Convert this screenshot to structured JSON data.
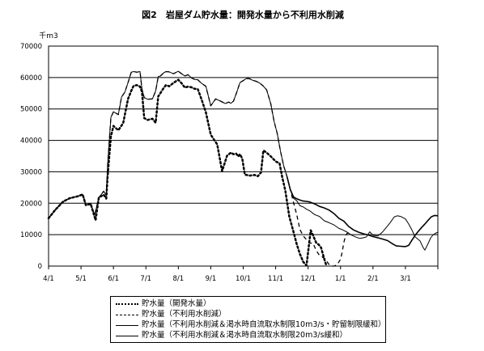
{
  "chart_data": {
    "type": "line",
    "title": "図2　岩屋ダム貯水量：開発水量から不利用水削減",
    "unit_label": "千m3",
    "ylim": [
      0,
      70000
    ],
    "y_ticks": [
      "0",
      "10000",
      "20000",
      "30000",
      "40000",
      "50000",
      "60000",
      "70000"
    ],
    "x_ticks": [
      "4/1",
      "5/1",
      "6/1",
      "7/1",
      "8/1",
      "9/1",
      "10/1",
      "11/1",
      "12/1",
      "1/1",
      "2/1",
      "3/1"
    ],
    "x_units": "months from 4/1",
    "xlim": [
      0,
      12
    ],
    "grid": "horizontal",
    "legend_position": "bottom",
    "series": [
      {
        "name": "貯水量（開発水量）",
        "style": "dotted",
        "x": [
          0,
          0.2,
          0.45,
          0.65,
          0.9,
          1.05,
          1.15,
          1.3,
          1.45,
          1.55,
          1.7,
          1.78,
          1.82,
          1.92,
          2.0,
          2.15,
          2.3,
          2.45,
          2.55,
          2.62,
          2.72,
          2.82,
          2.88,
          2.95,
          3.05,
          3.2,
          3.3,
          3.38,
          3.45,
          3.55,
          3.62,
          3.72,
          3.85,
          4.0,
          4.1,
          4.2,
          4.3,
          4.4,
          4.5,
          4.6,
          4.72,
          4.85,
          5.0,
          5.2,
          5.35,
          5.5,
          5.62,
          5.7,
          5.78,
          5.85,
          5.9,
          5.97,
          6.05,
          6.2,
          6.35,
          6.45,
          6.55,
          6.62,
          6.72,
          6.85,
          7.0,
          7.12,
          7.2,
          7.3,
          7.42,
          7.55,
          7.65,
          7.75,
          7.85,
          7.95,
          8.08,
          8.15,
          8.25,
          8.32,
          8.4,
          8.47,
          8.52,
          8.57
        ],
        "values": [
          15200,
          17800,
          20500,
          21600,
          22200,
          22800,
          19400,
          19800,
          14600,
          21800,
          22700,
          21500,
          28600,
          41200,
          44600,
          43200,
          45500,
          53200,
          55800,
          57300,
          57600,
          57100,
          55400,
          47100,
          46500,
          46900,
          45600,
          54000,
          55100,
          56700,
          57600,
          57200,
          58300,
          59300,
          58200,
          56800,
          57100,
          56900,
          56400,
          56300,
          52900,
          48900,
          41800,
          38700,
          30200,
          35100,
          36100,
          35600,
          35800,
          34900,
          35600,
          34200,
          29100,
          28800,
          29000,
          28600,
          29800,
          36800,
          36100,
          34900,
          33300,
          32700,
          28400,
          23900,
          15800,
          10900,
          7000,
          3800,
          1300,
          200,
          11400,
          9800,
          7400,
          6900,
          5900,
          3300,
          1500,
          0
        ]
      },
      {
        "name": "貯水量（不利用水削減）",
        "style": "dashed",
        "x": [
          0,
          0.2,
          0.45,
          0.65,
          0.9,
          1.05,
          1.15,
          1.3,
          1.42,
          1.55,
          1.7,
          1.78,
          1.82,
          1.92,
          2.0,
          2.15,
          2.25,
          2.35,
          2.45,
          2.55,
          2.62,
          2.72,
          2.82,
          2.88,
          2.95,
          3.05,
          3.2,
          3.3,
          3.38,
          3.45,
          3.55,
          3.62,
          3.72,
          3.85,
          4.0,
          4.1,
          4.2,
          4.3,
          4.4,
          4.5,
          4.6,
          4.72,
          4.85,
          5.0,
          5.15,
          5.3,
          5.45,
          5.55,
          5.62,
          5.7,
          5.8,
          5.9,
          6.0,
          6.1,
          6.2,
          6.3,
          6.4,
          6.5,
          6.6,
          6.72,
          6.85,
          6.95,
          7.05,
          7.15,
          7.25,
          7.35,
          7.45,
          7.55,
          7.65,
          7.75,
          7.85,
          7.95,
          8.05,
          8.15,
          8.25,
          8.35,
          8.45,
          8.55,
          8.62,
          8.7,
          8.8,
          8.9,
          9.0,
          9.05,
          9.1,
          9.15,
          9.2,
          9.26
        ],
        "values": [
          15200,
          17800,
          20500,
          21600,
          22200,
          22800,
          19400,
          19800,
          16200,
          21800,
          23800,
          22500,
          32200,
          47300,
          49100,
          48200,
          53800,
          55300,
          58400,
          61700,
          61900,
          61700,
          61900,
          56300,
          53600,
          53100,
          53200,
          55700,
          60300,
          60500,
          61500,
          61900,
          61800,
          61200,
          62000,
          61200,
          60500,
          60900,
          59900,
          59400,
          59300,
          58100,
          57200,
          51000,
          53200,
          52500,
          51700,
          52200,
          51800,
          52500,
          55300,
          58400,
          59000,
          59700,
          59600,
          59100,
          58800,
          58300,
          57500,
          56100,
          51600,
          46100,
          42100,
          36500,
          31800,
          28500,
          24400,
          20300,
          16400,
          11600,
          9600,
          8400,
          7300,
          7300,
          5000,
          3400,
          2800,
          2200,
          800,
          0,
          0,
          500,
          2200,
          4500,
          7500,
          9500,
          10400,
          10600
        ]
      },
      {
        "name": "貯水量（不利用水削減＆渇水時自流取水制限10m3/s・貯留制限緩和）",
        "style": "solid",
        "x": [
          0,
          0.2,
          0.45,
          0.65,
          0.9,
          1.05,
          1.15,
          1.3,
          1.42,
          1.55,
          1.7,
          1.78,
          1.82,
          1.92,
          2.0,
          2.15,
          2.25,
          2.35,
          2.45,
          2.55,
          2.62,
          2.72,
          2.82,
          2.88,
          2.95,
          3.05,
          3.2,
          3.3,
          3.38,
          3.45,
          3.55,
          3.62,
          3.72,
          3.85,
          4.0,
          4.1,
          4.2,
          4.3,
          4.4,
          4.5,
          4.6,
          4.72,
          4.85,
          5.0,
          5.15,
          5.3,
          5.45,
          5.55,
          5.62,
          5.7,
          5.8,
          5.9,
          6.0,
          6.1,
          6.2,
          6.3,
          6.4,
          6.5,
          6.6,
          6.72,
          6.85,
          6.95,
          7.05,
          7.15,
          7.25,
          7.35,
          7.45,
          7.55,
          7.65,
          7.75,
          7.85,
          7.95,
          8.05,
          8.2,
          8.35,
          8.5,
          8.65,
          8.8,
          8.95,
          9.05,
          9.2,
          9.35,
          9.5,
          9.6,
          9.7,
          9.8,
          9.9,
          10.0,
          10.15,
          10.3,
          10.45,
          10.55,
          10.65,
          10.75,
          10.85,
          11.0,
          11.1,
          11.2,
          11.3,
          11.45,
          11.55,
          11.6,
          11.7,
          11.78,
          11.85,
          11.92,
          12.0
        ],
        "values": [
          15200,
          17800,
          20500,
          21600,
          22200,
          22800,
          19400,
          19800,
          16200,
          21800,
          23800,
          22500,
          32200,
          47300,
          49100,
          48200,
          53800,
          55300,
          58400,
          61700,
          61900,
          61700,
          61900,
          56300,
          53600,
          53100,
          53200,
          55700,
          60300,
          60500,
          61500,
          61900,
          61800,
          61200,
          62000,
          61200,
          60500,
          60900,
          59900,
          59400,
          59300,
          58100,
          57200,
          51000,
          53200,
          52500,
          51700,
          52200,
          51800,
          52500,
          55300,
          58400,
          59000,
          59700,
          59600,
          59100,
          58800,
          58300,
          57500,
          56100,
          51600,
          46100,
          42100,
          36500,
          31800,
          28500,
          24400,
          21600,
          20800,
          19200,
          18800,
          18100,
          17600,
          16400,
          15800,
          14400,
          13800,
          13100,
          12000,
          11600,
          10800,
          9800,
          9100,
          8800,
          9000,
          9300,
          10900,
          9800,
          9600,
          10900,
          12800,
          14100,
          15600,
          16000,
          15800,
          15000,
          13400,
          11500,
          9300,
          8000,
          5800,
          5100,
          7200,
          9000,
          9900,
          10400,
          10800
        ]
      },
      {
        "name": "貯水量（不利用水削減＆渇水時自流取水制限20m3/s緩和）",
        "style": "bold",
        "x": [
          7.35,
          7.45,
          7.55,
          7.65,
          7.75,
          7.85,
          7.95,
          8.05,
          8.2,
          8.35,
          8.5,
          8.65,
          8.8,
          8.95,
          9.1,
          9.25,
          9.4,
          9.55,
          9.7,
          9.85,
          10.0,
          10.15,
          10.3,
          10.45,
          10.6,
          10.72,
          10.85,
          11.0,
          11.1,
          11.2,
          11.3,
          11.4,
          11.5,
          11.6,
          11.7,
          11.8,
          11.9,
          12.0
        ],
        "values": [
          28500,
          24400,
          22000,
          21400,
          21000,
          20700,
          20600,
          20400,
          19800,
          19000,
          18500,
          17800,
          16700,
          15200,
          14300,
          12600,
          11500,
          10800,
          10300,
          9900,
          9400,
          9000,
          8600,
          8100,
          7100,
          6400,
          6300,
          6200,
          6600,
          8200,
          9800,
          11100,
          12300,
          13400,
          14600,
          15700,
          16100,
          16000
        ]
      }
    ]
  }
}
